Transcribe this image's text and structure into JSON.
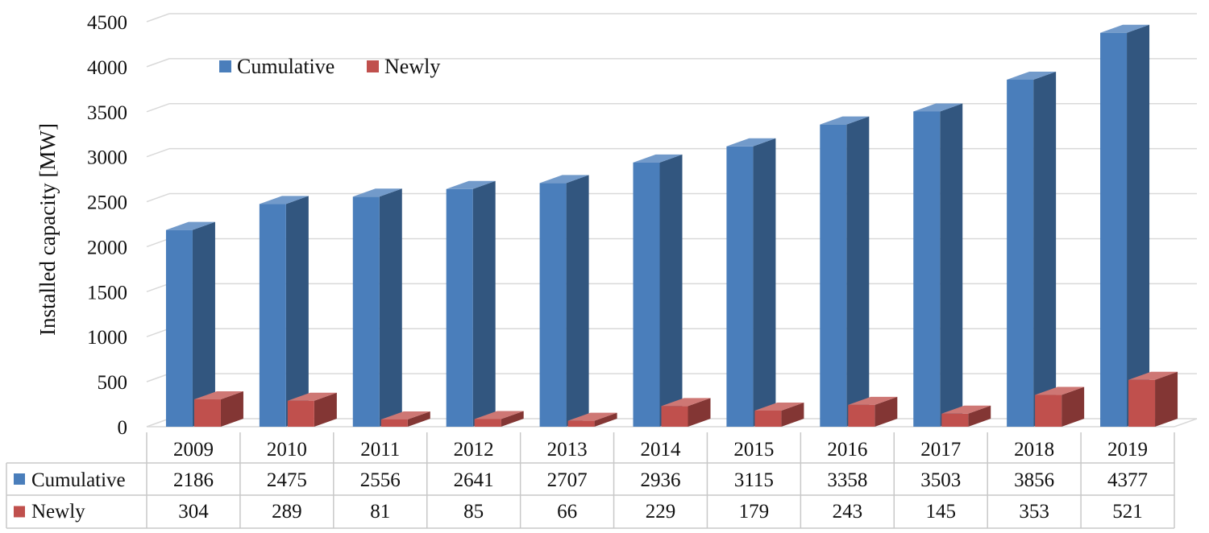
{
  "chart_data": {
    "type": "bar",
    "style": "3d-clustered-column-with-data-table",
    "categories": [
      "2009",
      "2010",
      "2011",
      "2012",
      "2013",
      "2014",
      "2015",
      "2016",
      "2017",
      "2018",
      "2019"
    ],
    "series": [
      {
        "name": "Cumulative",
        "color": "#4a7ebb",
        "values": [
          2186,
          2475,
          2556,
          2641,
          2707,
          2936,
          3115,
          3358,
          3503,
          3856,
          4377
        ]
      },
      {
        "name": "Newly",
        "color": "#c0504d",
        "values": [
          304,
          289,
          81,
          85,
          66,
          229,
          179,
          243,
          145,
          353,
          521
        ]
      }
    ],
    "ylabel": "Installed capacity [MW]",
    "ylim": [
      0,
      4500
    ],
    "yticks": [
      0,
      500,
      1000,
      1500,
      2000,
      2500,
      3000,
      3500,
      4000,
      4500
    ],
    "grid": true,
    "legend_position": "top-left",
    "data_table": true
  }
}
